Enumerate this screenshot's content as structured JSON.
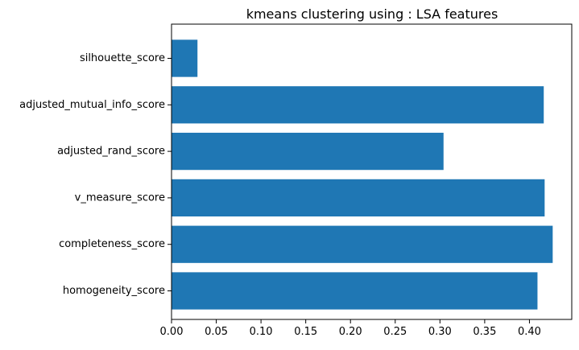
{
  "chart_data": {
    "type": "bar",
    "orientation": "horizontal",
    "title": "kmeans clustering using : LSA features",
    "xlabel": "",
    "ylabel": "",
    "categories": [
      "homogeneity_score",
      "completeness_score",
      "v_measure_score",
      "adjusted_rand_score",
      "adjusted_mutual_info_score",
      "silhouette_score"
    ],
    "values": [
      0.409,
      0.426,
      0.417,
      0.304,
      0.416,
      0.029
    ],
    "xlim": [
      0,
      0.4473
    ],
    "xticks": [
      "0.00",
      "0.05",
      "0.10",
      "0.15",
      "0.20",
      "0.25",
      "0.30",
      "0.35",
      "0.40"
    ],
    "grid": false,
    "legend": "none",
    "colors": {
      "bar": "#1f77b4",
      "axes": "#000000",
      "background": "#ffffff"
    }
  }
}
